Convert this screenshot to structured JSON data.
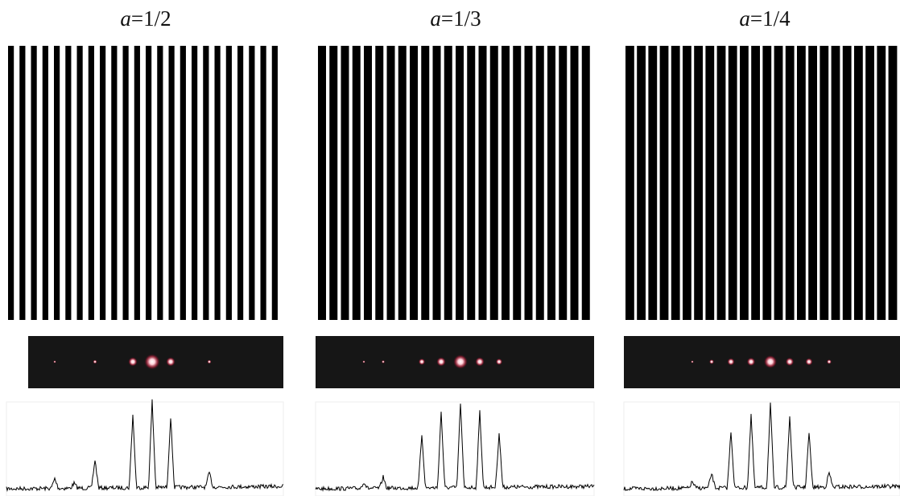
{
  "panels": [
    {
      "title": {
        "symbol": "a",
        "rest": "=1/2"
      }
    },
    {
      "title": {
        "symbol": "a",
        "rest": "=1/3"
      }
    },
    {
      "title": {
        "symbol": "a",
        "rest": "=1/4"
      }
    }
  ]
}
